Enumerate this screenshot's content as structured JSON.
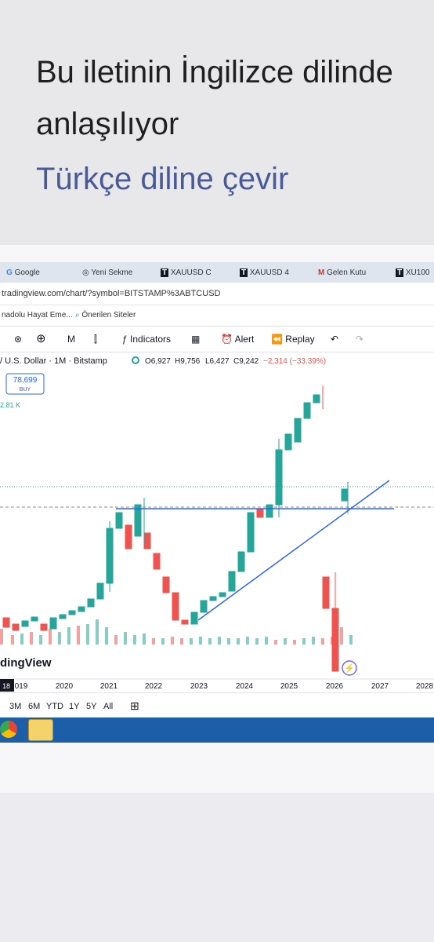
{
  "post": {
    "translation_notice": [
      "Bu iletinin İngilizce dilinde",
      "anlaşılıyor"
    ],
    "translate_link": "Türkçe diline çevir"
  },
  "screenshot": {
    "tabs": [
      "Google",
      "Yeni Sekme",
      "XAUUSD C",
      "XAUUSD 4",
      "Gelen Kutu",
      "XU100"
    ],
    "url": "tradingview.com/chart/?symbol=BITSTAMP%3ABTCUSD",
    "bookmarks": [
      "nadolu Hayat Eme...",
      "Önerilen Siteler"
    ],
    "toolbar": [
      "M",
      "Indicators",
      "Alert",
      "Replay"
    ],
    "legend": {
      "symbol": "/ U.S. Dollar · 1M · Bitstamp",
      "open": "O6,927",
      "high": "H9,756",
      "low": "L6,427",
      "close": "C9,242",
      "change": "−2,314 (−33.39%)"
    },
    "buy": {
      "price": "78,699",
      "label": "BUY"
    },
    "price_label": "2.81 K",
    "watermark": "dingView",
    "x_axis": [
      "019",
      "2020",
      "2021",
      "2022",
      "2023",
      "2024",
      "2025",
      "2026",
      "2027",
      "2028"
    ],
    "corner_label": "18",
    "timeframes": [
      "3M",
      "6M",
      "YTD",
      "1Y",
      "5Y",
      "All"
    ]
  }
}
